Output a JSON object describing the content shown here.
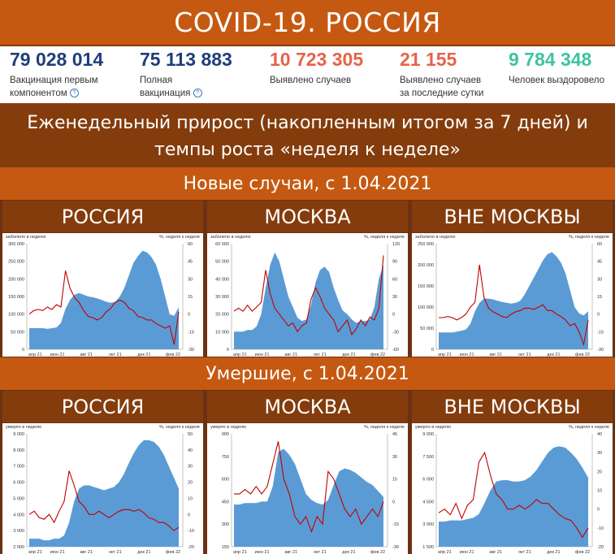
{
  "title": "COVID-19. РОССИЯ",
  "stats": [
    {
      "value": "79 028 014",
      "label_lines": [
        "Вакцинация первым",
        "компонентом"
      ],
      "help": true,
      "color": "#1f3e79"
    },
    {
      "value": "75 113 883",
      "label_lines": [
        "Полная",
        "вакцинация"
      ],
      "help": true,
      "color": "#1f3e79"
    },
    {
      "value": "10 723 305",
      "label_lines": [
        "Выявлено случаев"
      ],
      "help": false,
      "color": "#e8624a"
    },
    {
      "value": "21 155",
      "label_lines": [
        "Выявлено случаев",
        "за последние сутки"
      ],
      "help": false,
      "color": "#e8624a"
    },
    {
      "value": "9 784 348",
      "label_lines": [
        "Человек выздоровело"
      ],
      "help": false,
      "color": "#3fc3a0"
    }
  ],
  "help_glyph": "?",
  "weekly_header": "Еженедельный прирост (накопленным итогом за 7 дней) и темпы роста «неделя к неделе»",
  "section_cases": "Новые случаи, с 1.04.2021",
  "section_deaths": "Умершие, с 1.04.2021",
  "regions": [
    "РОССИЯ",
    "МОСКВА",
    "ВНЕ МОСКВЫ"
  ],
  "colors": {
    "area": "#5b9bd5",
    "line": "#c00000",
    "orange": "#c65911",
    "brown": "#843c0c"
  },
  "chart_data": [
    {
      "type": "area",
      "group": "cases",
      "region": "РОССИЯ",
      "ylabel_left": "заболело в неделю",
      "ylabel_right": "%, неделя к неделе",
      "left_ticks": [
        "300 000",
        "250 000",
        "200 000",
        "150 000",
        "100 000",
        "50 000",
        "0"
      ],
      "ylim_left": [
        0,
        300000
      ],
      "right_ticks": [
        "60",
        "45",
        "30",
        "15",
        "0",
        "-15",
        "-30"
      ],
      "ylim_right": [
        -30,
        60
      ],
      "xticks": [
        "апр 21",
        "июн 21",
        "авг 21",
        "окт 21",
        "дек 21",
        "фев 22"
      ],
      "area_values": [
        60000,
        60000,
        60000,
        60000,
        58000,
        60000,
        62000,
        75000,
        115000,
        140000,
        155000,
        160000,
        155000,
        150000,
        148000,
        145000,
        140000,
        135000,
        132000,
        135000,
        150000,
        175000,
        210000,
        245000,
        265000,
        280000,
        275000,
        262000,
        240000,
        200000,
        150000,
        100000,
        95000,
        120000
      ],
      "line_values": [
        0,
        3,
        4,
        3,
        6,
        4,
        8,
        6,
        37,
        22,
        14,
        10,
        3,
        -2,
        -3,
        -5,
        -3,
        2,
        5,
        10,
        12,
        10,
        5,
        3,
        -2,
        -3,
        -5,
        -5,
        -8,
        -10,
        -12,
        -10,
        -26,
        2
      ]
    },
    {
      "type": "area",
      "group": "cases",
      "region": "МОСКВА",
      "ylabel_left": "заболело в неделю",
      "ylabel_right": "%, неделя к неделе",
      "left_ticks": [
        "60 000",
        "50 000",
        "40 000",
        "30 000",
        "20 000",
        "10 000",
        "0"
      ],
      "ylim_left": [
        0,
        60000
      ],
      "right_ticks": [
        "120",
        "90",
        "60",
        "30",
        "0",
        "-30",
        "-60"
      ],
      "ylim_right": [
        -60,
        120
      ],
      "xticks": [
        "апр 21",
        "июн 21",
        "авг 21",
        "окт 21",
        "дек 21",
        "фев 22"
      ],
      "area_values": [
        10000,
        10000,
        10000,
        11000,
        11000,
        13000,
        20000,
        35000,
        48000,
        55000,
        50000,
        40000,
        30000,
        24000,
        18000,
        16000,
        17000,
        25000,
        38000,
        45000,
        47000,
        44000,
        35000,
        28000,
        22000,
        20000,
        17000,
        15000,
        16000,
        16000,
        17000,
        24000,
        40000,
        48000
      ],
      "line_values": [
        5,
        10,
        5,
        15,
        5,
        12,
        20,
        75,
        35,
        10,
        0,
        -10,
        -20,
        -15,
        -30,
        -20,
        -15,
        25,
        45,
        30,
        10,
        0,
        -10,
        -30,
        -20,
        -10,
        -35,
        -25,
        -10,
        -20,
        -5,
        -10,
        10,
        100
      ]
    },
    {
      "type": "area",
      "group": "cases",
      "region": "ВНЕ МОСКВЫ",
      "ylabel_left": "заболело в неделю",
      "ylabel_right": "%, неделя к неделе",
      "left_ticks": [
        "250 000",
        "200 000",
        "150 000",
        "100 000",
        "50 000",
        "0"
      ],
      "ylim_left": [
        0,
        250000
      ],
      "right_ticks": [
        "60",
        "45",
        "30",
        "15",
        "0",
        "-15",
        "-30"
      ],
      "ylim_right": [
        -30,
        60
      ],
      "xticks": [
        "апр 21",
        "июн 21",
        "авг 21",
        "окт 21",
        "дек 21",
        "фев 22"
      ],
      "area_values": [
        40000,
        40000,
        40000,
        40000,
        42000,
        44000,
        47000,
        60000,
        90000,
        110000,
        120000,
        120000,
        118000,
        115000,
        112000,
        110000,
        108000,
        110000,
        115000,
        130000,
        150000,
        170000,
        190000,
        210000,
        225000,
        230000,
        220000,
        205000,
        180000,
        140000,
        100000,
        85000,
        80000,
        90000
      ],
      "line_values": [
        -3,
        -3,
        -2,
        -3,
        -5,
        -3,
        0,
        6,
        10,
        42,
        14,
        5,
        2,
        0,
        -2,
        -3,
        0,
        2,
        3,
        5,
        5,
        4,
        6,
        8,
        3,
        3,
        0,
        -2,
        -5,
        -10,
        -8,
        -15,
        -26,
        -5
      ]
    },
    {
      "type": "area",
      "group": "deaths",
      "region": "РОССИЯ",
      "ylabel_left": "умерло в неделю",
      "ylabel_right": "%, неделя к неделе",
      "left_ticks": [
        "9 000",
        "8 000",
        "7 000",
        "6 000",
        "5 000",
        "4 000",
        "3 000",
        "2 000"
      ],
      "ylim_left": [
        2000,
        9000
      ],
      "right_ticks": [
        "50",
        "40",
        "30",
        "20",
        "10",
        "0",
        "-10",
        "-20"
      ],
      "ylim_right": [
        -20,
        50
      ],
      "xticks": [
        "апр 21",
        "июн 21",
        "авг 21",
        "окт 21",
        "дек 21",
        "фев 22"
      ],
      "area_values": [
        2500,
        2500,
        2500,
        2400,
        2400,
        2500,
        2500,
        2700,
        3500,
        4800,
        5600,
        5800,
        5800,
        5700,
        5600,
        5500,
        5600,
        5700,
        6000,
        6500,
        7200,
        7800,
        8300,
        8600,
        8600,
        8500,
        8200,
        7700,
        7000,
        6300,
        5600
      ],
      "line_values": [
        0,
        2,
        -2,
        -3,
        0,
        -5,
        2,
        8,
        27,
        18,
        8,
        5,
        0,
        0,
        2,
        0,
        -2,
        0,
        2,
        3,
        3,
        2,
        3,
        1,
        -2,
        -3,
        -5,
        -5,
        -7,
        -10,
        -8
      ]
    },
    {
      "type": "area",
      "group": "deaths",
      "region": "МОСКВА",
      "ylabel_left": "умерло в неделю",
      "ylabel_right": "%, неделя к неделе",
      "left_ticks": [
        "900",
        "750",
        "600",
        "450",
        "300",
        "150"
      ],
      "ylim_left": [
        150,
        900
      ],
      "right_ticks": [
        "45",
        "30",
        "15",
        "0",
        "-15",
        "-30"
      ],
      "ylim_right": [
        -30,
        45
      ],
      "xticks": [
        "апр 21",
        "июн 21",
        "авг 21",
        "окт 21",
        "дек 21",
        "фев 22"
      ],
      "area_values": [
        430,
        430,
        440,
        440,
        440,
        450,
        450,
        550,
        780,
        800,
        760,
        700,
        600,
        500,
        460,
        440,
        430,
        460,
        560,
        650,
        670,
        660,
        640,
        610,
        580,
        560,
        520,
        480
      ],
      "line_values": [
        5,
        5,
        8,
        5,
        10,
        5,
        10,
        25,
        40,
        15,
        5,
        -10,
        -15,
        -10,
        -20,
        -10,
        -15,
        20,
        15,
        5,
        -5,
        -10,
        -5,
        -15,
        -10,
        -5,
        -10,
        0
      ]
    },
    {
      "type": "area",
      "group": "deaths",
      "region": "ВНЕ МОСКВЫ",
      "ylabel_left": "умерло в неделю",
      "ylabel_right": "%, неделя к неделе",
      "left_ticks": [
        "9 000",
        "7 500",
        "6 000",
        "4 500",
        "3 000",
        "1 500"
      ],
      "ylim_left": [
        0,
        9000
      ],
      "right_ticks": [
        "40",
        "30",
        "20",
        "10",
        "0",
        "-10",
        "-20"
      ],
      "ylim_right": [
        -20,
        40
      ],
      "xticks": [
        "апр 21",
        "июн 21",
        "авг 21",
        "окт 21",
        "дек 21",
        "фев 22"
      ],
      "area_values": [
        2000,
        2000,
        2100,
        2100,
        2100,
        2200,
        2300,
        2600,
        3500,
        4500,
        5200,
        5300,
        5300,
        5200,
        5200,
        5300,
        5600,
        6100,
        6800,
        7500,
        7900,
        8000,
        7900,
        7500,
        7000,
        6300,
        5500
      ],
      "line_values": [
        -2,
        0,
        -3,
        3,
        -5,
        2,
        5,
        25,
        30,
        18,
        8,
        5,
        0,
        0,
        2,
        0,
        2,
        5,
        3,
        3,
        0,
        -3,
        -5,
        -6,
        -10,
        -15,
        -10
      ]
    }
  ]
}
